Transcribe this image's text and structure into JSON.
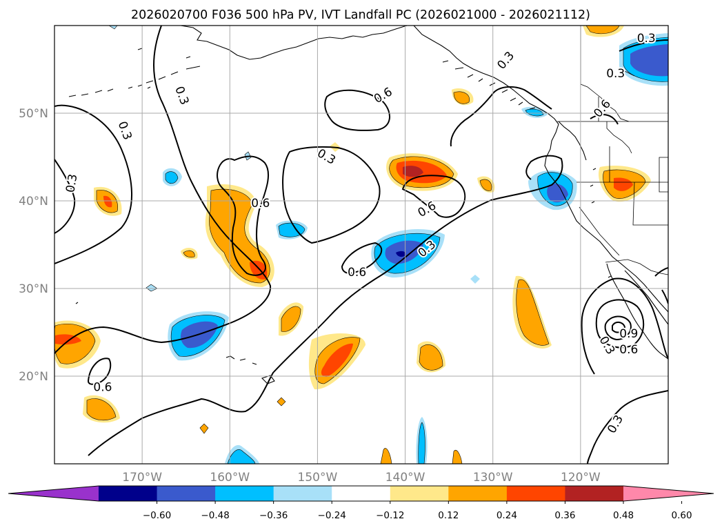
{
  "title": "2026020700 F036 500 hPa PV, IVT Landfall PC (2026021000 - 2026021112)",
  "colors": {
    "land_line": "#000000",
    "grid": "#a9a9a9",
    "tick_text": "#808080",
    "contour": "#000000"
  },
  "map": {
    "lon_min": -180,
    "lon_max": -110,
    "lat_min": 10,
    "lat_max": 60,
    "lon_ticks": [
      {
        "lon": -170,
        "label": "170°W"
      },
      {
        "lon": -160,
        "label": "160°W"
      },
      {
        "lon": -150,
        "label": "150°W"
      },
      {
        "lon": -140,
        "label": "140°W"
      },
      {
        "lon": -130,
        "label": "130°W"
      },
      {
        "lon": -120,
        "label": "120°W"
      }
    ],
    "lat_ticks": [
      {
        "lat": 50,
        "label": "50°N"
      },
      {
        "lat": 40,
        "label": "40°N"
      },
      {
        "lat": 30,
        "label": "30°N"
      },
      {
        "lat": 20,
        "label": "20°N"
      }
    ]
  },
  "contour_labels": [
    {
      "text": "0.3",
      "lon": -172,
      "lat": 48,
      "rot": 70
    },
    {
      "text": "0.3",
      "lon": -178,
      "lat": 42,
      "rot": -80
    },
    {
      "text": "0.3",
      "lon": -165.5,
      "lat": 52,
      "rot": 70
    },
    {
      "text": "0.6",
      "lon": -156.5,
      "lat": 39.7,
      "rot": 0
    },
    {
      "text": "0.3",
      "lon": -149,
      "lat": 45,
      "rot": 30
    },
    {
      "text": "0.6",
      "lon": -142.5,
      "lat": 52,
      "rot": -30
    },
    {
      "text": "0.6",
      "lon": -137.5,
      "lat": 39,
      "rot": -30
    },
    {
      "text": "0.3",
      "lon": -137.5,
      "lat": 34.5,
      "rot": -40
    },
    {
      "text": "0.6",
      "lon": -145.5,
      "lat": 31.8,
      "rot": 0
    },
    {
      "text": "0.3",
      "lon": -128.5,
      "lat": 56,
      "rot": -50
    },
    {
      "text": "0.6",
      "lon": -174.5,
      "lat": 18.7,
      "rot": 0
    },
    {
      "text": "0.3",
      "lon": -116,
      "lat": 54.5,
      "rot": 0
    },
    {
      "text": "0.3",
      "lon": -112.5,
      "lat": 58.5,
      "rot": 0
    },
    {
      "text": "0.6",
      "lon": -117.5,
      "lat": 50.5,
      "rot": -50
    },
    {
      "text": "0.3",
      "lon": -117,
      "lat": 23.5,
      "rot": 60
    },
    {
      "text": "0.9",
      "lon": -114.5,
      "lat": 24.8,
      "rot": 0
    },
    {
      "text": "0.6",
      "lon": -114.5,
      "lat": 23,
      "rot": 0
    },
    {
      "text": "0.3",
      "lon": -116,
      "lat": 14.5,
      "rot": -60
    }
  ],
  "colorbar": {
    "ticks": [
      "−0.60",
      "−0.48",
      "−0.36",
      "−0.24",
      "−0.12",
      "0.12",
      "0.24",
      "0.36",
      "0.48",
      "0.60"
    ],
    "colors": [
      "#9932cc",
      "#00008b",
      "#3a5acd",
      "#00bfff",
      "#a8e0f8",
      "#ffffff",
      "#ffe88a",
      "#ffa500",
      "#ff4500",
      "#b22222",
      "#ff88aa"
    ]
  }
}
